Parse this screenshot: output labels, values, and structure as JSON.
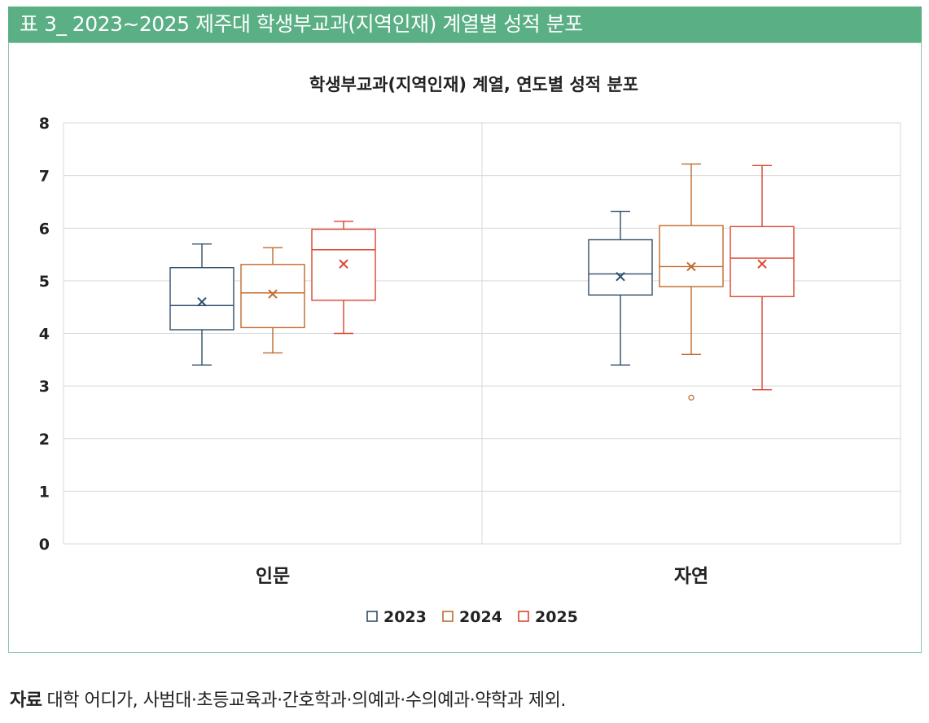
{
  "header": {
    "title": "표 3_ 2023~2025 제주대 학생부교과(지역인재) 계열별 성적 분포"
  },
  "chart_data": {
    "type": "box",
    "title": "학생부교과(지역인재) 계열, 연도별 성적 분포",
    "categories": [
      "인문",
      "자연"
    ],
    "ylim": [
      0,
      8
    ],
    "yticks": [
      "0",
      "1",
      "2",
      "3",
      "4",
      "5",
      "6",
      "7",
      "8"
    ],
    "grid": true,
    "legend_position": "bottom",
    "series": [
      {
        "name": "2023",
        "color": "#2f4e6a",
        "boxes": [
          {
            "min": 3.4,
            "q1": 4.07,
            "median": 4.53,
            "q3": 5.25,
            "max": 5.7,
            "mean": 4.6,
            "outliers": []
          },
          {
            "min": 3.4,
            "q1": 4.73,
            "median": 5.13,
            "q3": 5.78,
            "max": 6.32,
            "mean": 5.08,
            "outliers": []
          }
        ]
      },
      {
        "name": "2024",
        "color": "#c0692b",
        "boxes": [
          {
            "min": 3.63,
            "q1": 4.11,
            "median": 4.77,
            "q3": 5.31,
            "max": 5.63,
            "mean": 4.75,
            "outliers": []
          },
          {
            "min": 3.6,
            "q1": 4.89,
            "median": 5.27,
            "q3": 6.05,
            "max": 7.22,
            "mean": 5.27,
            "outliers": [
              2.78
            ]
          }
        ]
      },
      {
        "name": "2025",
        "color": "#d9452f",
        "boxes": [
          {
            "min": 4.0,
            "q1": 4.63,
            "median": 5.59,
            "q3": 5.98,
            "max": 6.13,
            "mean": 5.32,
            "outliers": []
          },
          {
            "min": 2.93,
            "q1": 4.7,
            "median": 5.43,
            "q3": 6.03,
            "max": 7.19,
            "mean": 5.32,
            "outliers": []
          }
        ]
      }
    ]
  },
  "source": {
    "label": "자료",
    "text": "대학 어디가, 사범대·초등교육과·간호학과·의예과·수의예과·약학과 제외."
  }
}
